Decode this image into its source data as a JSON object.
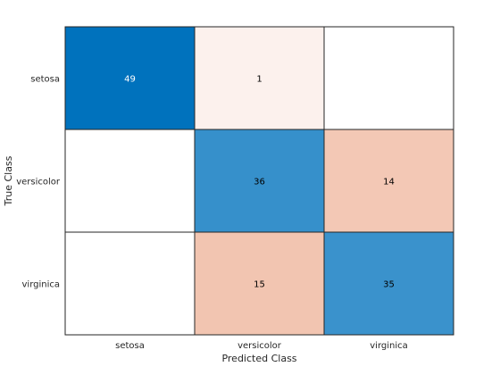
{
  "chart_data": {
    "type": "heatmap",
    "title": "",
    "xlabel": "Predicted Class",
    "ylabel": "True Class",
    "x_categories": [
      "setosa",
      "versicolor",
      "virginica"
    ],
    "y_categories": [
      "setosa",
      "versicolor",
      "virginica"
    ],
    "values": [
      [
        49,
        1,
        null
      ],
      [
        null,
        36,
        14
      ],
      [
        null,
        15,
        35
      ]
    ],
    "cell_labels": [
      [
        "49",
        "1",
        ""
      ],
      [
        "",
        "36",
        "14"
      ],
      [
        "",
        "15",
        "35"
      ]
    ],
    "diagonal_color": "#0072bd",
    "offdiagonal_color": "#d95319",
    "grid": true,
    "legend": "none"
  }
}
